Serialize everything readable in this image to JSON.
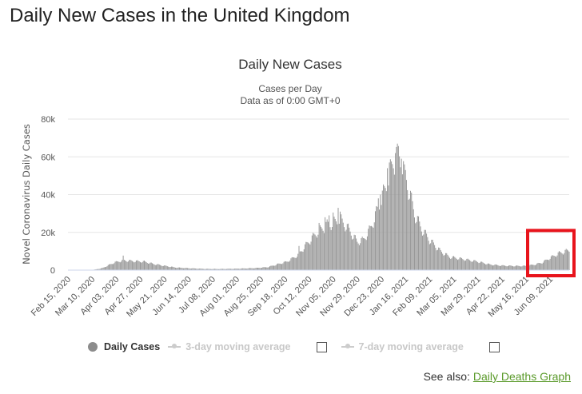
{
  "page": {
    "title": "Daily New Cases in the United Kingdom"
  },
  "legend": {
    "daily": "Daily Cases",
    "ma3": "3-day moving average",
    "ma7": "7-day moving average"
  },
  "footer": {
    "see_also": "See also:",
    "link": "Daily Deaths Graph"
  },
  "colors": {
    "bars": "#999999",
    "highlight_box": "#e8141c",
    "grid": "#e6e6e6",
    "link": "#5a9a2a"
  },
  "chart_data": {
    "type": "bar",
    "title": "Daily New Cases",
    "subtitle": "Cases per Day",
    "subtitle2": "Data as of 0:00 GMT+0",
    "xlabel": "",
    "ylabel": "Novel Coronavirus Daily Cases",
    "ylim": [
      0,
      80000
    ],
    "yticks": [
      0,
      20000,
      40000,
      60000,
      80000
    ],
    "ytick_labels": [
      "0",
      "20k",
      "40k",
      "60k",
      "80k"
    ],
    "x_start": "Feb 15, 2020",
    "x_end": "Jun 28, 2021",
    "xtick_labels": [
      "Feb 15, 2020",
      "Mar 10, 2020",
      "Apr 03, 2020",
      "Apr 27, 2020",
      "May 21, 2020",
      "Jun 14, 2020",
      "Jul 08, 2020",
      "Aug 01, 2020",
      "Aug 25, 2020",
      "Sep 18, 2020",
      "Oct 12, 2020",
      "Nov 05, 2020",
      "Nov 29, 2020",
      "Dec 23, 2020",
      "Jan 16, 2021",
      "Feb 09, 2021",
      "Mar 05, 2021",
      "Mar 29, 2021",
      "Apr 22, 2021",
      "May 16, 2021",
      "Jun 09, 2021"
    ],
    "grid": true,
    "legend_position": "bottom",
    "highlight": {
      "from": "May 20, 2021",
      "to": "Jun 28, 2021"
    },
    "series": [
      {
        "name": "Daily Cases",
        "color": "#999999",
        "anchors": [
          [
            "Feb 15, 2020",
            0
          ],
          [
            "Mar 10, 2020",
            50
          ],
          [
            "Mar 20, 2020",
            1000
          ],
          [
            "Apr 01, 2020",
            4000
          ],
          [
            "Apr 10, 2020",
            5200
          ],
          [
            "Apr 20, 2020",
            4800
          ],
          [
            "May 01, 2020",
            4500
          ],
          [
            "May 10, 2020",
            3300
          ],
          [
            "May 21, 2020",
            2300
          ],
          [
            "Jun 01, 2020",
            1400
          ],
          [
            "Jun 14, 2020",
            1000
          ],
          [
            "Jul 01, 2020",
            650
          ],
          [
            "Jul 15, 2020",
            600
          ],
          [
            "Aug 01, 2020",
            750
          ],
          [
            "Aug 20, 2020",
            1100
          ],
          [
            "Sep 01, 2020",
            1600
          ],
          [
            "Sep 10, 2020",
            3000
          ],
          [
            "Sep 20, 2020",
            4500
          ],
          [
            "Oct 01, 2020",
            8000
          ],
          [
            "Oct 10, 2020",
            14000
          ],
          [
            "Oct 20, 2020",
            20000
          ],
          [
            "Oct 30, 2020",
            24000
          ],
          [
            "Nov 05, 2020",
            25000
          ],
          [
            "Nov 12, 2020",
            27000
          ],
          [
            "Nov 20, 2020",
            22000
          ],
          [
            "Nov 29, 2020",
            15000
          ],
          [
            "Dec 05, 2020",
            16000
          ],
          [
            "Dec 12, 2020",
            22000
          ],
          [
            "Dec 20, 2020",
            33000
          ],
          [
            "Dec 28, 2020",
            45000
          ],
          [
            "Jan 04, 2021",
            58000
          ],
          [
            "Jan 09, 2021",
            62000
          ],
          [
            "Jan 16, 2021",
            50000
          ],
          [
            "Jan 25, 2021",
            30000
          ],
          [
            "Feb 01, 2021",
            22000
          ],
          [
            "Feb 09, 2021",
            16000
          ],
          [
            "Feb 20, 2021",
            10000
          ],
          [
            "Mar 01, 2021",
            7000
          ],
          [
            "Mar 15, 2021",
            5800
          ],
          [
            "Mar 29, 2021",
            4500
          ],
          [
            "Apr 10, 2021",
            3000
          ],
          [
            "Apr 22, 2021",
            2400
          ],
          [
            "May 05, 2021",
            2200
          ],
          [
            "May 16, 2021",
            2200
          ],
          [
            "May 25, 2021",
            3000
          ],
          [
            "Jun 01, 2021",
            4000
          ],
          [
            "Jun 09, 2021",
            6500
          ],
          [
            "Jun 18, 2021",
            9000
          ],
          [
            "Jun 28, 2021",
            10500
          ]
        ],
        "spikes": [
          [
            "Apr 10, 2020",
            7700
          ],
          [
            "Oct 02, 2020",
            12800
          ],
          [
            "Oct 22, 2020",
            25000
          ],
          [
            "Oct 28, 2020",
            28000
          ],
          [
            "Nov 01, 2020",
            29000
          ],
          [
            "Nov 05, 2020",
            30500
          ],
          [
            "Nov 10, 2020",
            33000
          ],
          [
            "Nov 12, 2020",
            31000
          ],
          [
            "Dec 20, 2020",
            38000
          ],
          [
            "Dec 22, 2020",
            40000
          ],
          [
            "Dec 29, 2020",
            54000
          ],
          [
            "Dec 31, 2020",
            57000
          ],
          [
            "Jan 06, 2021",
            62000
          ],
          [
            "Jan 08, 2021",
            67000
          ],
          [
            "Jan 12, 2021",
            59000
          ],
          [
            "Jan 15, 2021",
            56000
          ]
        ]
      }
    ]
  }
}
